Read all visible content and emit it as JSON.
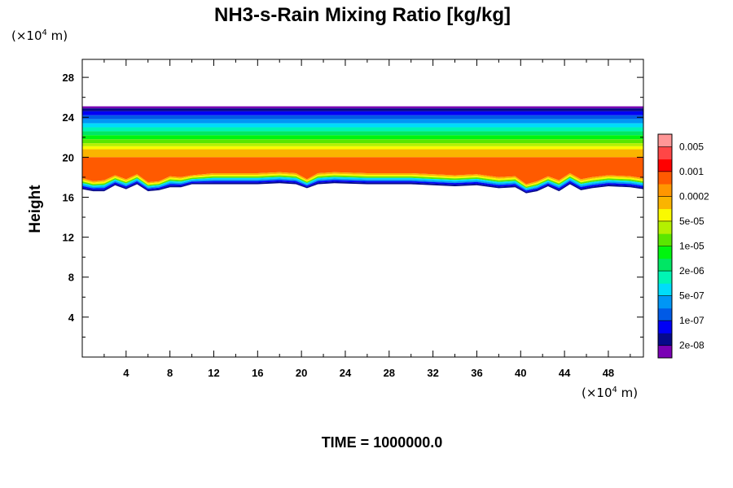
{
  "chart_data": {
    "type": "heatmap",
    "title": "NH3-s-Rain Mixing Ratio [kg/kg]",
    "ylabel": "Height",
    "xlabel": "",
    "x_unit": {
      "prefix": "(×10",
      "exp": "4",
      "suffix": " m)"
    },
    "y_unit": {
      "prefix": "(×10",
      "exp": "4",
      "suffix": " m)"
    },
    "xlim": [
      0,
      51.2
    ],
    "ylim": [
      0,
      29.8
    ],
    "x_ticks": [
      4,
      8,
      12,
      16,
      20,
      24,
      28,
      32,
      36,
      40,
      44,
      48
    ],
    "y_ticks": [
      4,
      8,
      12,
      16,
      20,
      24,
      28
    ],
    "time_label": "TIME = 1000000.0",
    "colorbar": {
      "colors": [
        "#7a00b4",
        "#06098a",
        "#0000f5",
        "#005ae6",
        "#0096f5",
        "#00dcfa",
        "#00f5b4",
        "#00e664",
        "#00f50f",
        "#5ae600",
        "#b4f000",
        "#fafa00",
        "#fab400",
        "#ff9600",
        "#ff5a00",
        "#ff0000",
        "#ff4646",
        "#ff9696"
      ],
      "labels": [
        "2e-08",
        "1e-07",
        "5e-07",
        "2e-06",
        "1e-05",
        "5e-05",
        "0.0002",
        "0.001",
        "0.005"
      ]
    },
    "cloud_top_height": 25.1,
    "bands": [
      {
        "top": 25.1,
        "color": "#7a00b4"
      },
      {
        "top": 24.9,
        "color": "#06098a"
      },
      {
        "top": 24.6,
        "color": "#0000f5"
      },
      {
        "top": 24.2,
        "color": "#005ae6"
      },
      {
        "top": 23.8,
        "color": "#0096f5"
      },
      {
        "top": 23.4,
        "color": "#00dcfa"
      },
      {
        "top": 23.0,
        "color": "#00f5b4"
      },
      {
        "top": 22.6,
        "color": "#00e664"
      },
      {
        "top": 22.2,
        "color": "#00f50f"
      },
      {
        "top": 21.8,
        "color": "#5ae600"
      },
      {
        "top": 21.4,
        "color": "#b4f000"
      },
      {
        "top": 21.1,
        "color": "#fafa00"
      },
      {
        "top": 20.8,
        "color": "#fab400"
      },
      {
        "top": 20.0,
        "color": "#ff5a00"
      }
    ],
    "lower_fringe_colors": [
      "#06098a",
      "#0000f5",
      "#0096f5",
      "#00dcfa",
      "#5ae600",
      "#fafa00",
      "#fab400"
    ],
    "red_layer_floor": {
      "x": [
        0,
        1,
        2,
        3,
        4,
        5,
        6,
        7,
        8,
        9,
        10,
        12,
        14,
        16,
        18,
        19.5,
        20.5,
        21.5,
        23,
        26,
        30,
        34,
        36,
        38,
        39.5,
        40.5,
        41.5,
        42.5,
        43.5,
        44.5,
        45.5,
        46.5,
        48,
        50,
        51.2
      ],
      "y": [
        17.9,
        17.6,
        17.7,
        18.2,
        17.8,
        18.3,
        17.5,
        17.6,
        18.1,
        18.0,
        18.2,
        18.4,
        18.4,
        18.4,
        18.5,
        18.4,
        17.8,
        18.4,
        18.5,
        18.4,
        18.4,
        18.2,
        18.3,
        18.0,
        18.1,
        17.3,
        17.6,
        18.1,
        17.7,
        18.4,
        17.8,
        18.0,
        18.2,
        18.1,
        17.9
      ]
    },
    "cloud_base": {
      "x": [
        0,
        1,
        2,
        3,
        4,
        5,
        6,
        7,
        8,
        9,
        10,
        12,
        14,
        16,
        18,
        19.5,
        20.5,
        21.5,
        23,
        26,
        30,
        34,
        36,
        38,
        39.5,
        40.5,
        41.5,
        42.5,
        43.5,
        44.5,
        45.5,
        46.5,
        48,
        50,
        51.2
      ],
      "y": [
        16.8,
        16.6,
        16.6,
        17.2,
        16.8,
        17.3,
        16.6,
        16.7,
        17.0,
        17.0,
        17.3,
        17.3,
        17.3,
        17.3,
        17.4,
        17.3,
        16.9,
        17.3,
        17.4,
        17.3,
        17.3,
        17.1,
        17.2,
        16.9,
        17.0,
        16.4,
        16.6,
        17.1,
        16.6,
        17.3,
        16.7,
        16.9,
        17.1,
        17.0,
        16.8
      ]
    }
  }
}
